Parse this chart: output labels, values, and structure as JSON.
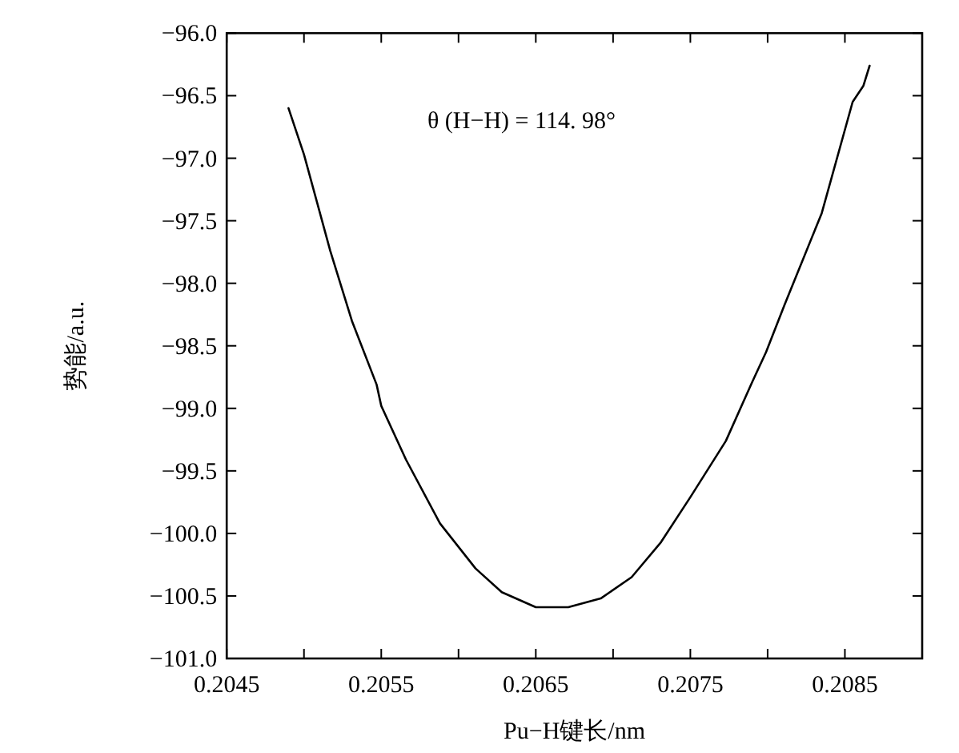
{
  "chart_data": {
    "type": "line",
    "xlabel": "Pu−H键长/nm",
    "ylabel": "势能/a.u.",
    "annotations": [
      "θ (H−H) = 114. 98°"
    ],
    "color": "#000000",
    "x": [
      0.2049,
      0.205,
      0.20517,
      0.20531,
      0.20547,
      0.2055,
      0.20566,
      0.20588,
      0.20611,
      0.20628,
      0.2065,
      0.20671,
      0.20692,
      0.20712,
      0.20731,
      0.2075,
      0.20773,
      0.2079,
      0.20799,
      0.20811,
      0.20835,
      0.20855,
      0.20862,
      0.20866
    ],
    "values": [
      -96.6,
      -96.97,
      -97.74,
      -98.3,
      -98.81,
      -98.98,
      -99.41,
      -99.92,
      -100.28,
      -100.47,
      -100.59,
      -100.59,
      -100.52,
      -100.35,
      -100.07,
      -99.71,
      -99.26,
      -98.79,
      -98.55,
      -98.17,
      -97.44,
      -96.55,
      -96.42,
      -96.26
    ],
    "xlim": [
      0.2045,
      0.209
    ],
    "ylim": [
      -101.0,
      -96.0
    ],
    "xticks": [
      0.2045,
      {
        "value": 0.205,
        "label": null
      },
      0.2055,
      {
        "value": 0.206,
        "label": null
      },
      0.2065,
      {
        "value": 0.207,
        "label": null
      },
      0.2075,
      {
        "value": 0.208,
        "label": null
      },
      0.2085
    ],
    "yticks": [
      {
        "value": -96.0,
        "label": "−96.0"
      },
      {
        "value": -96.5,
        "label": "−96.5"
      },
      {
        "value": -97.0,
        "label": "−97.0"
      },
      {
        "value": -97.5,
        "label": "−97.5"
      },
      {
        "value": -98.0,
        "label": "−98.0"
      },
      {
        "value": -98.5,
        "label": "−98.5"
      },
      {
        "value": -99.0,
        "label": "−99.0"
      },
      {
        "value": -99.5,
        "label": "−99.5"
      },
      {
        "value": -100.0,
        "label": "−100.0"
      },
      {
        "value": -100.5,
        "label": "−100.5"
      },
      {
        "value": -101.0,
        "label": "−101.0"
      }
    ]
  }
}
